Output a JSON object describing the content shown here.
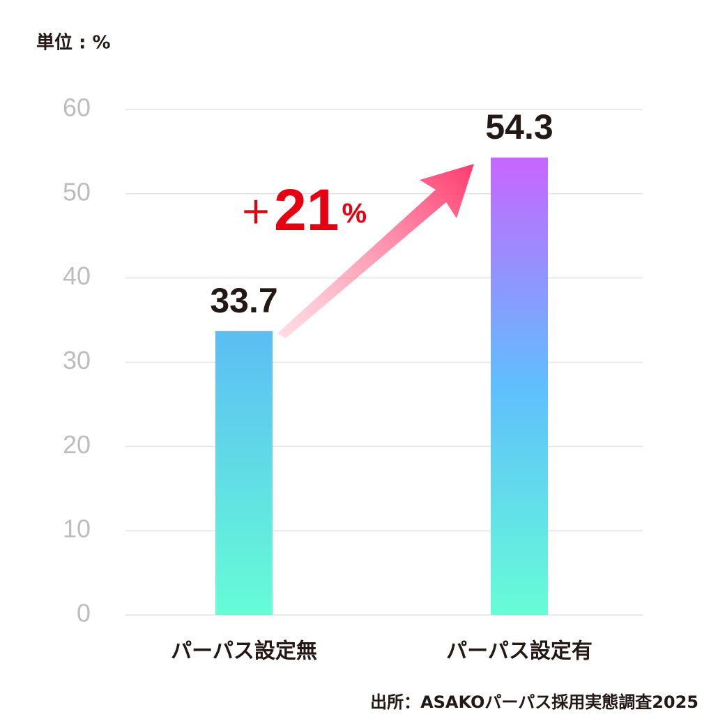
{
  "chart_data": {
    "type": "bar",
    "unit_label": "単位 : %",
    "categories": [
      "パーパス設定無",
      "パーパス設定有"
    ],
    "values": [
      33.7,
      54.3
    ],
    "gradients": [
      [
        "#5bbdf4",
        "#66fdd6"
      ],
      [
        "#c766fe",
        "#5fbffd",
        "#66fdd6"
      ]
    ],
    "ylim": [
      0,
      60
    ],
    "yticks": [
      0,
      10,
      20,
      30,
      40,
      50,
      60
    ],
    "grid": true,
    "annotation": [
      "＋",
      "21",
      "%"
    ],
    "annotation_color": "#e60012",
    "source": "出所：ASAKOパーパス採用実態調査2025"
  }
}
